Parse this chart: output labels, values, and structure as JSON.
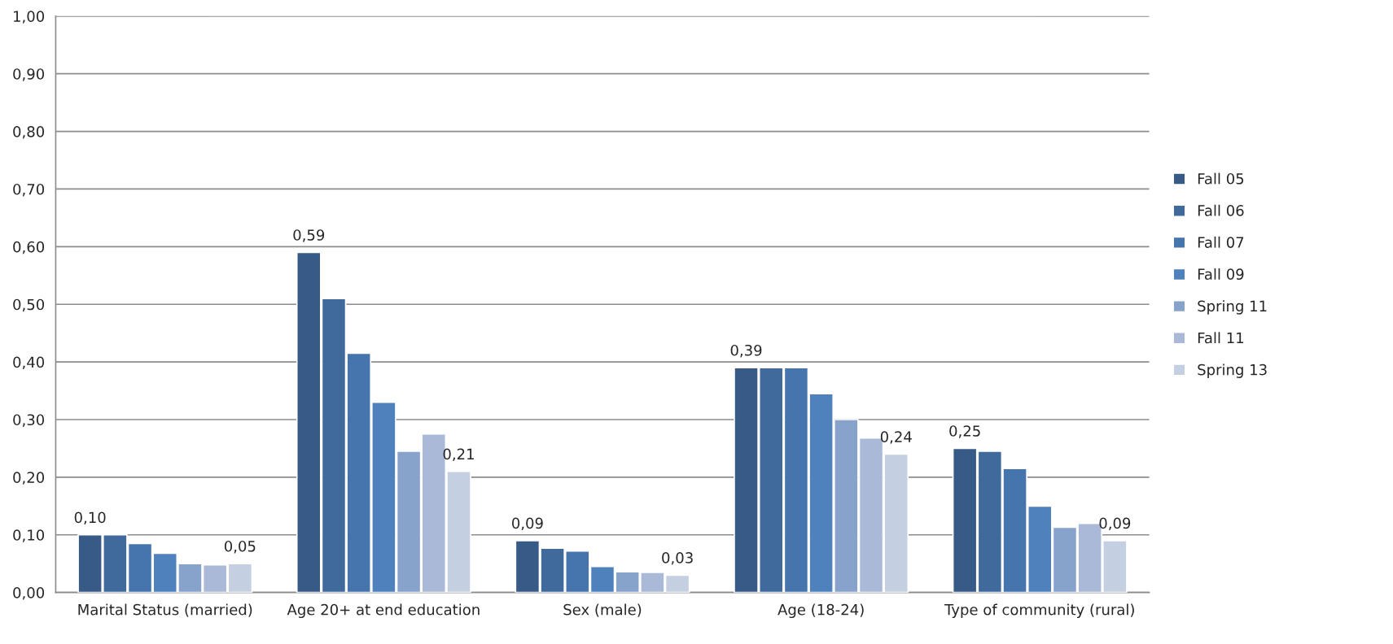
{
  "chart_data": {
    "type": "bar",
    "categories": [
      "Marital Status (married)",
      "Age 20+ at end education",
      "Sex (male)",
      "Age (18-24)",
      "Type of community (rural)"
    ],
    "series": [
      {
        "name": "Fall 05",
        "color": "#375a87",
        "values": [
          0.1,
          0.59,
          0.09,
          0.39,
          0.25
        ],
        "value_labels": [
          "0,10",
          "0,59",
          "0,09",
          "0,39",
          "0,25"
        ]
      },
      {
        "name": "Fall 06",
        "color": "#406a9c",
        "values": [
          0.1,
          0.51,
          0.077,
          0.39,
          0.245
        ]
      },
      {
        "name": "Fall 07",
        "color": "#4674ac",
        "values": [
          0.085,
          0.415,
          0.072,
          0.39,
          0.215
        ]
      },
      {
        "name": "Fall 09",
        "color": "#4f81bd",
        "values": [
          0.068,
          0.33,
          0.045,
          0.345,
          0.15
        ]
      },
      {
        "name": "Spring 11",
        "color": "#87a2cb",
        "values": [
          0.05,
          0.245,
          0.036,
          0.3,
          0.113
        ]
      },
      {
        "name": "Fall 11",
        "color": "#aab9d7",
        "values": [
          0.048,
          0.275,
          0.035,
          0.268,
          0.12
        ]
      },
      {
        "name": "Spring 13",
        "color": "#c4cfe2",
        "values": [
          0.05,
          0.21,
          0.03,
          0.24,
          0.09
        ],
        "value_labels": [
          "0,05",
          "0,21",
          "0,03",
          "0,24",
          "0,09"
        ]
      }
    ],
    "ylim": [
      0,
      1
    ],
    "yticks": [
      {
        "value": 0,
        "label": "0,00"
      },
      {
        "value": 0.1,
        "label": "0,10"
      },
      {
        "value": 0.2,
        "label": "0,20"
      },
      {
        "value": 0.3,
        "label": "0,30"
      },
      {
        "value": 0.4,
        "label": "0,40"
      },
      {
        "value": 0.5,
        "label": "0,50"
      },
      {
        "value": 0.6,
        "label": "0,60"
      },
      {
        "value": 0.7,
        "label": "0,70"
      },
      {
        "value": 0.8,
        "label": "0,80"
      },
      {
        "value": 0.9,
        "label": "0,90"
      },
      {
        "value": 1.0,
        "label": "1,00"
      }
    ],
    "grid": "y",
    "legend": "right"
  }
}
